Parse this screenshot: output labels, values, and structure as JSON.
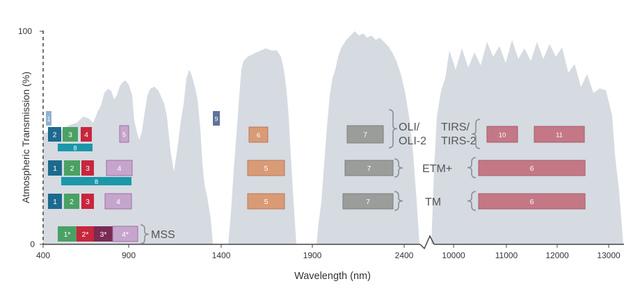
{
  "axes": {
    "y_label": "Atmospheric Transmission (%)",
    "y_ticks": [
      "100",
      "0"
    ],
    "x_label": "Wavelength (nm)",
    "x_ticks": [
      "400",
      "900",
      "1400",
      "1900",
      "2400",
      "10000",
      "11000",
      "12000",
      "13000"
    ]
  },
  "colors": {
    "transmission_fill": "#d5dbe1",
    "dark_blue": "#1d6a8e",
    "green": "#4aa164",
    "red": "#c8263d",
    "light_purple": "#c6a5cc",
    "purple_border": "#9e6fa5",
    "teal": "#1b97a9",
    "light_blue": "#8fb3d1",
    "slate": "#5e7399",
    "orange": "#d99b76",
    "grey": "#9a9d9a",
    "rose": "#c47886",
    "maroon": "#7a2a55"
  },
  "rows": [
    {
      "sensor": "OLI/\nOLI-2",
      "label_lines": [
        "OLI/",
        "OLI-2"
      ],
      "tirs_label_lines": [
        "TIRS/",
        "TIRS-2"
      ],
      "bands": [
        "1",
        "2",
        "3",
        "4",
        "5",
        "8",
        "9",
        "6",
        "7",
        "10",
        "11"
      ]
    },
    {
      "sensor": "ETM+",
      "bands": [
        "1",
        "2",
        "3",
        "4",
        "8",
        "5",
        "7",
        "6"
      ]
    },
    {
      "sensor": "TM",
      "bands": [
        "1",
        "2",
        "3",
        "4",
        "5",
        "7",
        "6"
      ]
    },
    {
      "sensor": "MSS",
      "bands": [
        "1*",
        "2*",
        "3*",
        "4*"
      ]
    }
  ]
}
